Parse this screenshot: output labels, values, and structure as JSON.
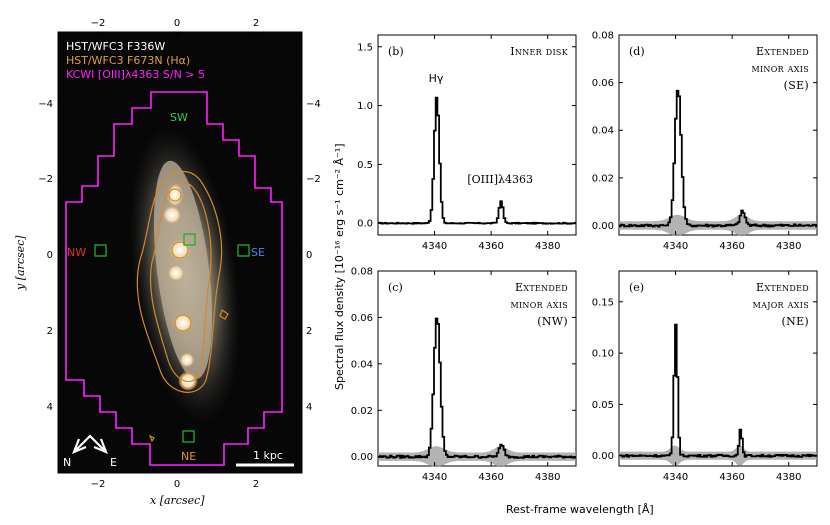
{
  "image_panel": {
    "legend": [
      {
        "text": "HST/WFC3 F336W",
        "color": "#ffffff"
      },
      {
        "text": "HST/WFC3 F673N (Hα)",
        "color": "#e0a040"
      },
      {
        "text": "KCWI [OIII]λ4363 S/N > 5",
        "color": "#ff22ff"
      }
    ],
    "region_labels": [
      {
        "text": "SW",
        "color": "#33cc55"
      },
      {
        "text": "NW",
        "color": "#e03030"
      },
      {
        "text": "SE",
        "color": "#4488ee"
      },
      {
        "text": "NE",
        "color": "#e89040"
      }
    ],
    "compass": {
      "n": "N",
      "e": "E"
    },
    "scalebar": "1 kpc",
    "xlabel": "x [arcsec]",
    "ylabel": "y [arcsec]",
    "xticks": [
      "−2",
      "0",
      "2"
    ],
    "yticks_left": [
      "−4",
      "−2",
      "0",
      "2",
      "4"
    ],
    "yticks_right": [
      "−4",
      "−2",
      "0",
      "2",
      "4"
    ],
    "xticks_top": [
      "−2",
      "0",
      "2"
    ]
  },
  "spectra": {
    "ylabel": "Spectral flux density [10⁻¹⁶ erg s⁻¹ cm⁻² Å⁻¹]",
    "xlabel": "Rest-frame wavelength [Å]",
    "line_labels": {
      "hgamma": "Hγ",
      "oiii": "[OIII]λ4363"
    }
  },
  "chart_data": [
    {
      "type": "line",
      "panel": "(b)",
      "title": [
        "Inner disk"
      ],
      "xlim": [
        4320,
        4390
      ],
      "ylim": [
        -0.1,
        1.6
      ],
      "xticks": [
        4340,
        4360,
        4380
      ],
      "yticks": [
        "0.0",
        "0.5",
        "1.0",
        "1.5"
      ],
      "ytick_values": [
        0,
        0.5,
        1.0,
        1.5
      ],
      "peaks": [
        {
          "center": 4340.5,
          "amp": 1.07,
          "sigma": 0.9
        },
        {
          "center": 4363.2,
          "amp": 0.19,
          "sigma": 0.7
        }
      ],
      "noise": 0.004,
      "error_band": 0
    },
    {
      "type": "line",
      "panel": "(d)",
      "title": [
        "Extended",
        "minor axis",
        "(SE)"
      ],
      "xlim": [
        4320,
        4390
      ],
      "ylim": [
        -0.004,
        0.08
      ],
      "xticks": [
        4340,
        4360,
        4380
      ],
      "yticks": [
        "0.00",
        "0.02",
        "0.04",
        "0.06",
        "0.08"
      ],
      "ytick_values": [
        0,
        0.02,
        0.04,
        0.06,
        0.08
      ],
      "peaks": [
        {
          "center": 4340.6,
          "amp": 0.058,
          "sigma": 1.1
        },
        {
          "center": 4363.4,
          "amp": 0.006,
          "sigma": 0.9
        }
      ],
      "noise": 0.0005,
      "error_band": 0.0018
    },
    {
      "type": "line",
      "panel": "(c)",
      "title": [
        "Extended",
        "minor axis",
        "(NW)"
      ],
      "xlim": [
        4320,
        4390
      ],
      "ylim": [
        -0.004,
        0.08
      ],
      "xticks": [
        4340,
        4360,
        4380
      ],
      "yticks": [
        "0.00",
        "0.02",
        "0.04",
        "0.06",
        "0.08"
      ],
      "ytick_values": [
        0,
        0.02,
        0.04,
        0.06,
        0.08
      ],
      "peaks": [
        {
          "center": 4340.6,
          "amp": 0.061,
          "sigma": 1.1
        },
        {
          "center": 4363.4,
          "amp": 0.005,
          "sigma": 0.9
        }
      ],
      "noise": 0.0005,
      "error_band": 0.0018
    },
    {
      "type": "line",
      "panel": "(e)",
      "title": [
        "Extended",
        "major axis",
        "(NE)"
      ],
      "xlim": [
        4320,
        4390
      ],
      "ylim": [
        -0.01,
        0.18
      ],
      "xticks": [
        4340,
        4360,
        4380
      ],
      "yticks": [
        "0.00",
        "0.05",
        "0.10",
        "0.15"
      ],
      "ytick_values": [
        0,
        0.05,
        0.1,
        0.15
      ],
      "peaks": [
        {
          "center": 4339.8,
          "amp": 0.128,
          "sigma": 0.6
        },
        {
          "center": 4362.7,
          "amp": 0.027,
          "sigma": 0.5
        }
      ],
      "noise": 0.001,
      "error_band": 0.004
    }
  ]
}
